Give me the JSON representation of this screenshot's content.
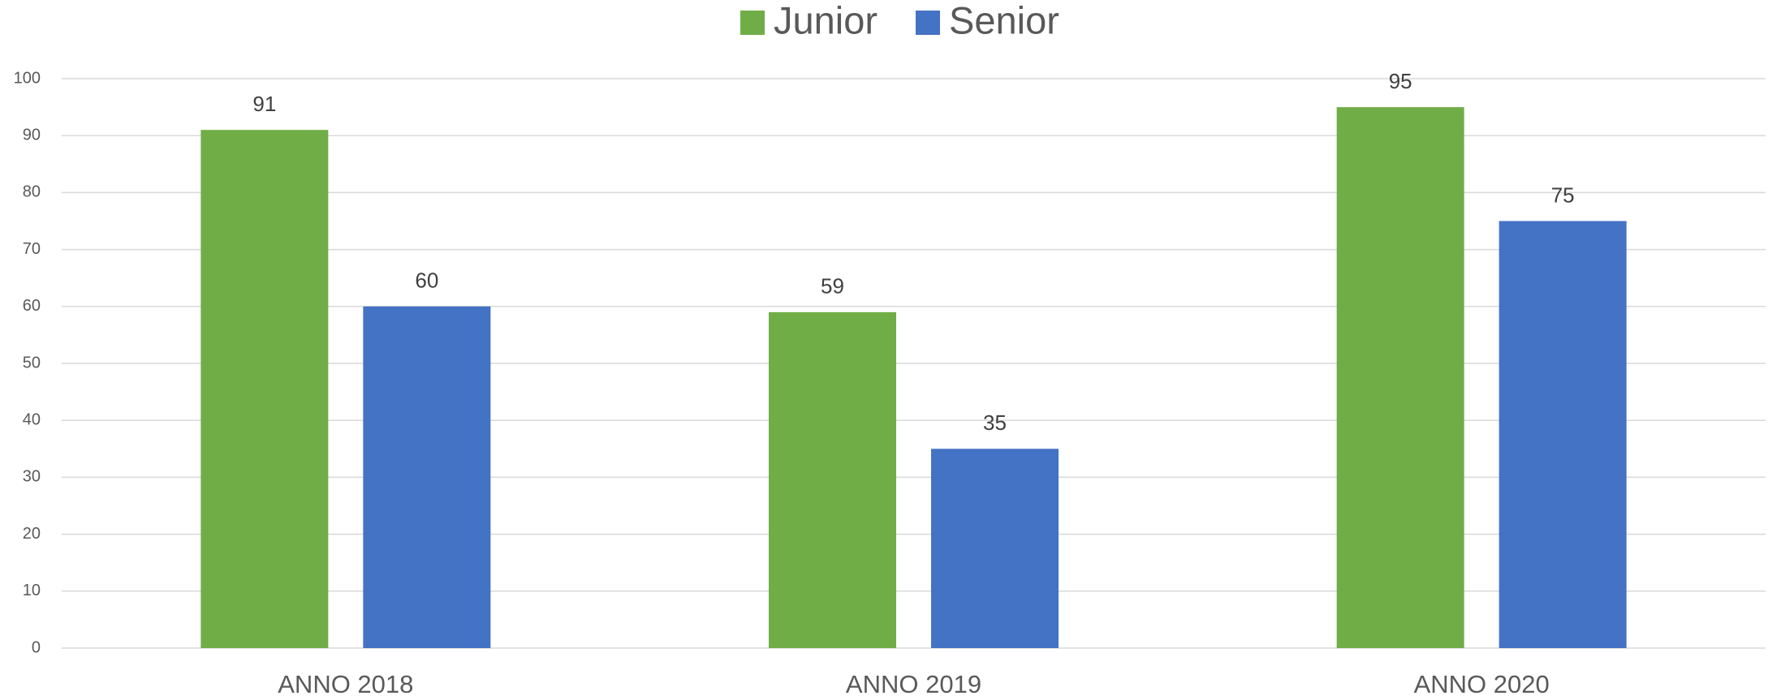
{
  "chart_data": {
    "type": "bar",
    "categories": [
      "ANNO 2018",
      "ANNO 2019",
      "ANNO 2020"
    ],
    "series": [
      {
        "name": "Junior",
        "color": "#70ad47",
        "values": [
          91,
          59,
          95
        ]
      },
      {
        "name": "Senior",
        "color": "#4472c4",
        "values": [
          60,
          35,
          75
        ]
      }
    ],
    "ylim": [
      0,
      100
    ],
    "yticks": [
      0,
      10,
      20,
      30,
      40,
      50,
      60,
      70,
      80,
      90,
      100
    ],
    "grid": true,
    "legend": "top"
  }
}
